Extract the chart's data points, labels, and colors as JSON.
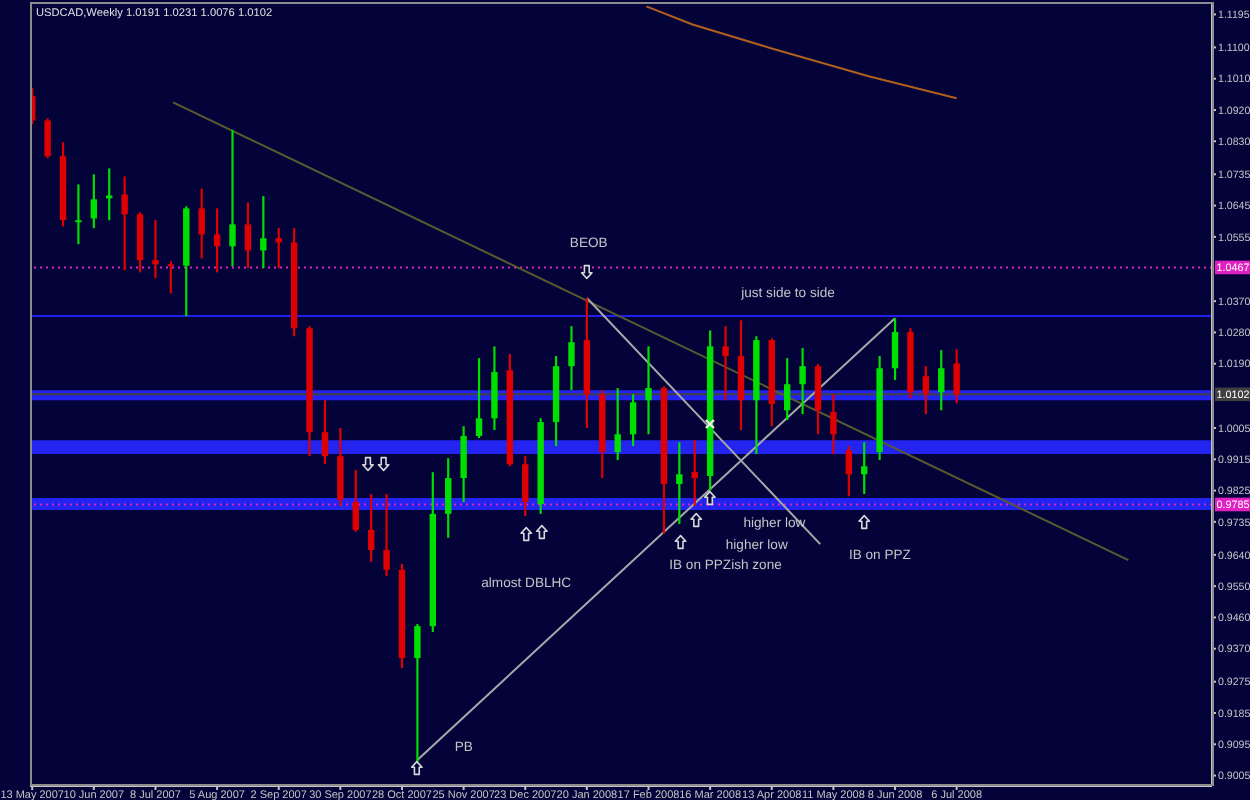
{
  "chart_data": {
    "type": "candlestick",
    "title": "USDCAD,Weekly 1.0191 1.0231 1.0076 1.0102",
    "x": [
      "2007-05-13",
      "2007-05-20",
      "2007-05-27",
      "2007-06-03",
      "2007-06-10",
      "2007-06-17",
      "2007-06-24",
      "2007-07-01",
      "2007-07-08",
      "2007-07-15",
      "2007-07-22",
      "2007-07-29",
      "2007-08-05",
      "2007-08-12",
      "2007-08-19",
      "2007-08-26",
      "2007-09-02",
      "2007-09-09",
      "2007-09-16",
      "2007-09-23",
      "2007-09-30",
      "2007-10-07",
      "2007-10-14",
      "2007-10-21",
      "2007-10-28",
      "2007-11-04",
      "2007-11-11",
      "2007-11-18",
      "2007-11-25",
      "2007-12-02",
      "2007-12-09",
      "2007-12-16",
      "2007-12-23",
      "2007-12-30",
      "2008-01-06",
      "2008-01-13",
      "2008-01-20",
      "2008-01-27",
      "2008-02-03",
      "2008-02-10",
      "2008-02-17",
      "2008-02-24",
      "2008-03-02",
      "2008-03-09",
      "2008-03-16",
      "2008-03-23",
      "2008-03-30",
      "2008-04-06",
      "2008-04-13",
      "2008-04-20",
      "2008-04-27",
      "2008-05-04",
      "2008-05-11",
      "2008-05-18",
      "2008-05-25",
      "2008-06-01",
      "2008-06-08",
      "2008-06-15",
      "2008-06-22",
      "2008-06-29",
      "2008-07-06"
    ],
    "ohlc": [
      [
        1.096,
        1.0983,
        1.0879,
        1.089
      ],
      [
        1.089,
        1.0896,
        1.0781,
        1.0787
      ],
      [
        1.0787,
        1.0827,
        1.0585,
        1.0603
      ],
      [
        1.0597,
        1.0706,
        1.0534,
        1.0603
      ],
      [
        1.0608,
        1.0735,
        1.058,
        1.0663
      ],
      [
        1.0666,
        1.0752,
        1.0603,
        1.0674
      ],
      [
        1.0677,
        1.0729,
        1.0459,
        1.062
      ],
      [
        1.062,
        1.0626,
        1.0453,
        1.0488
      ],
      [
        1.0488,
        1.0603,
        1.0436,
        1.0476
      ],
      [
        1.0476,
        1.0485,
        1.0392,
        1.0472
      ],
      [
        1.0472,
        1.0643,
        1.0327,
        1.0637
      ],
      [
        1.0637,
        1.0694,
        1.0493,
        1.0562
      ],
      [
        1.0562,
        1.0637,
        1.0453,
        1.0528
      ],
      [
        1.0528,
        1.0862,
        1.047,
        1.0591
      ],
      [
        1.0591,
        1.0654,
        1.0465,
        1.0516
      ],
      [
        1.0516,
        1.0672,
        1.0465,
        1.0551
      ],
      [
        1.0551,
        1.058,
        1.0465,
        1.0539
      ],
      [
        1.0539,
        1.058,
        1.0269,
        1.0292
      ],
      [
        1.0292,
        1.0298,
        0.9924,
        0.9993
      ],
      [
        0.9993,
        1.0085,
        0.9901,
        0.9924
      ],
      [
        0.9924,
        1.0005,
        0.9781,
        0.9798
      ],
      [
        0.9792,
        0.9884,
        0.9706,
        0.9712
      ],
      [
        0.9712,
        0.9815,
        0.962,
        0.9654
      ],
      [
        0.9654,
        0.9815,
        0.9579,
        0.9597
      ],
      [
        0.9597,
        0.9614,
        0.9314,
        0.9343
      ],
      [
        0.9343,
        0.9441,
        0.9045,
        0.9435
      ],
      [
        0.9435,
        0.9878,
        0.9418,
        0.9758
      ],
      [
        0.9758,
        0.9918,
        0.9689,
        0.9861
      ],
      [
        0.9861,
        1.001,
        0.9792,
        0.9982
      ],
      [
        0.9982,
        1.0206,
        0.9976,
        1.0033
      ],
      [
        1.0033,
        1.024,
        0.9999,
        1.0166
      ],
      [
        1.0171,
        1.0218,
        0.9895,
        0.9901
      ],
      [
        0.9901,
        0.9924,
        0.9752,
        0.9792
      ],
      [
        0.9786,
        1.0033,
        0.9758,
        1.0022
      ],
      [
        1.0022,
        1.0212,
        0.9953,
        1.0183
      ],
      [
        1.0183,
        1.0298,
        1.0114,
        1.0252
      ],
      [
        1.0258,
        1.0379,
        1.0005,
        1.0102
      ],
      [
        1.0102,
        1.0114,
        0.9861,
        0.9936
      ],
      [
        0.9936,
        1.012,
        0.9913,
        0.9987
      ],
      [
        0.9987,
        1.0102,
        0.9953,
        1.0079
      ],
      [
        1.0085,
        1.024,
        0.9987,
        1.012
      ],
      [
        1.012,
        1.0125,
        0.97,
        0.9844
      ],
      [
        0.9844,
        0.9964,
        0.9729,
        0.9872
      ],
      [
        0.9878,
        0.997,
        0.9781,
        0.9861
      ],
      [
        0.9867,
        1.0286,
        0.9826,
        1.024
      ],
      [
        1.024,
        1.0298,
        1.0085,
        1.0212
      ],
      [
        1.0212,
        1.0315,
        0.9999,
        1.0085
      ],
      [
        1.0085,
        1.0269,
        0.993,
        1.0258
      ],
      [
        1.0258,
        1.0263,
        1.001,
        1.0074
      ],
      [
        1.0056,
        1.0206,
        1.0028,
        1.0131
      ],
      [
        1.0131,
        1.0235,
        1.0045,
        1.0183
      ],
      [
        1.0183,
        1.0189,
        0.9987,
        1.0056
      ],
      [
        1.0051,
        1.0102,
        0.993,
        0.9987
      ],
      [
        0.9941,
        0.9953,
        0.9809,
        0.9872
      ],
      [
        0.9872,
        0.9964,
        0.9815,
        0.9895
      ],
      [
        0.9936,
        1.0212,
        0.9913,
        1.0177
      ],
      [
        1.0177,
        1.0321,
        1.0143,
        1.0281
      ],
      [
        1.0281,
        1.0292,
        1.0091,
        1.0108
      ],
      [
        1.0154,
        1.0183,
        1.0045,
        1.0102
      ],
      [
        1.0108,
        1.0229,
        1.0056,
        1.0177
      ],
      [
        1.0191,
        1.0231,
        1.0076,
        1.0102
      ]
    ],
    "colors": [
      "#e00000",
      "#e00000",
      "#e00000",
      "#00e000",
      "#00e000",
      "#00e000",
      "#e00000",
      "#e00000",
      "#e00000",
      "#e00000",
      "#00e000",
      "#e00000",
      "#e00000",
      "#00e000",
      "#e00000",
      "#00e000",
      "#e00000",
      "#e00000",
      "#e00000",
      "#e00000",
      "#e00000",
      "#e00000",
      "#e00000",
      "#e00000",
      "#e00000",
      "#00e000",
      "#00e000",
      "#00e000",
      "#00e000",
      "#00e000",
      "#00e000",
      "#e00000",
      "#e00000",
      "#00e000",
      "#00e000",
      "#00e000",
      "#e00000",
      "#e00000",
      "#00e000",
      "#00e000",
      "#00e000",
      "#e00000",
      "#00e000",
      "#e00000",
      "#00e000",
      "#e00000",
      "#e00000",
      "#00e000",
      "#e00000",
      "#00e000",
      "#00e000",
      "#e00000",
      "#e00000",
      "#e00000",
      "#00e000",
      "#00e000",
      "#00e000",
      "#e00000",
      "#e00000",
      "#00e000",
      "#e00000"
    ],
    "series": [
      {
        "type": "line",
        "x": [
          "2007-07-16",
          "2008-09-22"
        ],
        "values": [
          1.0942,
          0.9625
        ],
        "color": "#5a5a30"
      },
      {
        "type": "line",
        "x": [
          "2008-02-16",
          "2008-03-08",
          "2008-04-13",
          "2008-05-27",
          "2008-07-06"
        ],
        "values": [
          1.1218,
          1.1166,
          1.1097,
          1.1017,
          1.0954
        ],
        "color": "#b0601c"
      },
      {
        "type": "line",
        "x": [
          "2007-11-04",
          "2008-06-08"
        ],
        "values": [
          0.905,
          1.0321
        ],
        "color": "#a8a8a8"
      },
      {
        "type": "line",
        "x": [
          "2008-01-20",
          "2008-05-05"
        ],
        "values": [
          1.0379,
          0.9671
        ],
        "color": "#a8a8a8"
      }
    ],
    "xlim": [
      "2007-05-12",
      "2008-10-30"
    ],
    "xticks": [
      {
        "value": "2007-05-13",
        "label": "13 May 2007"
      },
      {
        "value": "2007-06-10",
        "label": "10 Jun 2007"
      },
      {
        "value": "2007-07-08",
        "label": "8 Jul 2007"
      },
      {
        "value": "2007-08-05",
        "label": "5 Aug 2007"
      },
      {
        "value": "2007-09-02",
        "label": "2 Sep 2007"
      },
      {
        "value": "2007-09-30",
        "label": "30 Sep 2007"
      },
      {
        "value": "2007-10-28",
        "label": "28 Oct 2007"
      },
      {
        "value": "2007-11-25",
        "label": "25 Nov 2007"
      },
      {
        "value": "2007-12-23",
        "label": "23 Dec 2007"
      },
      {
        "value": "2008-01-20",
        "label": "20 Jan 2008"
      },
      {
        "value": "2008-02-17",
        "label": "17 Feb 2008"
      },
      {
        "value": "2008-03-16",
        "label": "16 Mar 2008"
      },
      {
        "value": "2008-04-13",
        "label": "13 Apr 2008"
      },
      {
        "value": "2008-05-11",
        "label": "11 May 2008"
      },
      {
        "value": "2008-06-08",
        "label": "8 Jun 2008"
      },
      {
        "value": "2008-07-06",
        "label": "6 Jul 2008"
      }
    ],
    "ylim": [
      0.8975,
      1.1225
    ],
    "yticks": [
      1.1195,
      {
        "value": 1.11,
        "label": "1.1100"
      },
      {
        "value": 1.101,
        "label": "1.1010"
      },
      {
        "value": 1.092,
        "label": "1.0920"
      },
      {
        "value": 1.083,
        "label": "1.0830"
      },
      1.0735,
      1.0645,
      1.0555,
      {
        "value": 1.037,
        "label": "1.0370"
      },
      {
        "value": 1.028,
        "label": "1.0280"
      },
      {
        "value": 1.019,
        "label": "1.0190"
      },
      1.0005,
      0.9915,
      0.9825,
      0.9735,
      {
        "value": 0.964,
        "label": "0.9640"
      },
      {
        "value": 0.955,
        "label": "0.9550"
      },
      {
        "value": 0.946,
        "label": "0.9460"
      },
      {
        "value": 0.937,
        "label": "0.9370"
      },
      0.9275,
      0.9185,
      0.9095,
      0.9005
    ],
    "ref_lines": [
      {
        "axis": "y",
        "value": 1.0467,
        "label": "1.0467",
        "color": "#e020c0",
        "line_style": "dotted"
      },
      {
        "axis": "y",
        "value": 0.9785,
        "label": "0.9785",
        "color": "#e020c0",
        "line_style": "dotted"
      },
      {
        "axis": "y",
        "value": 1.0102,
        "label": "1.0102",
        "color": "#404040",
        "line_style": "solid"
      },
      {
        "axis": "y",
        "value": 1.0327,
        "color": "#2020e8",
        "line_style": "solid"
      }
    ],
    "bands": [
      {
        "axis": "y",
        "from": 1.0085,
        "to": 1.0114,
        "color": "#2424f0"
      },
      {
        "axis": "y",
        "from": 0.993,
        "to": 0.997,
        "color": "#2424f0"
      },
      {
        "axis": "y",
        "from": 0.9769,
        "to": 0.9804,
        "color": "#2424f0"
      }
    ],
    "annotations": [
      "BEOB",
      "just side to side",
      "almost DBLHC",
      "PB",
      "higher low",
      "higher low",
      "IB on PPZish zone",
      "IB on PPZ"
    ]
  }
}
